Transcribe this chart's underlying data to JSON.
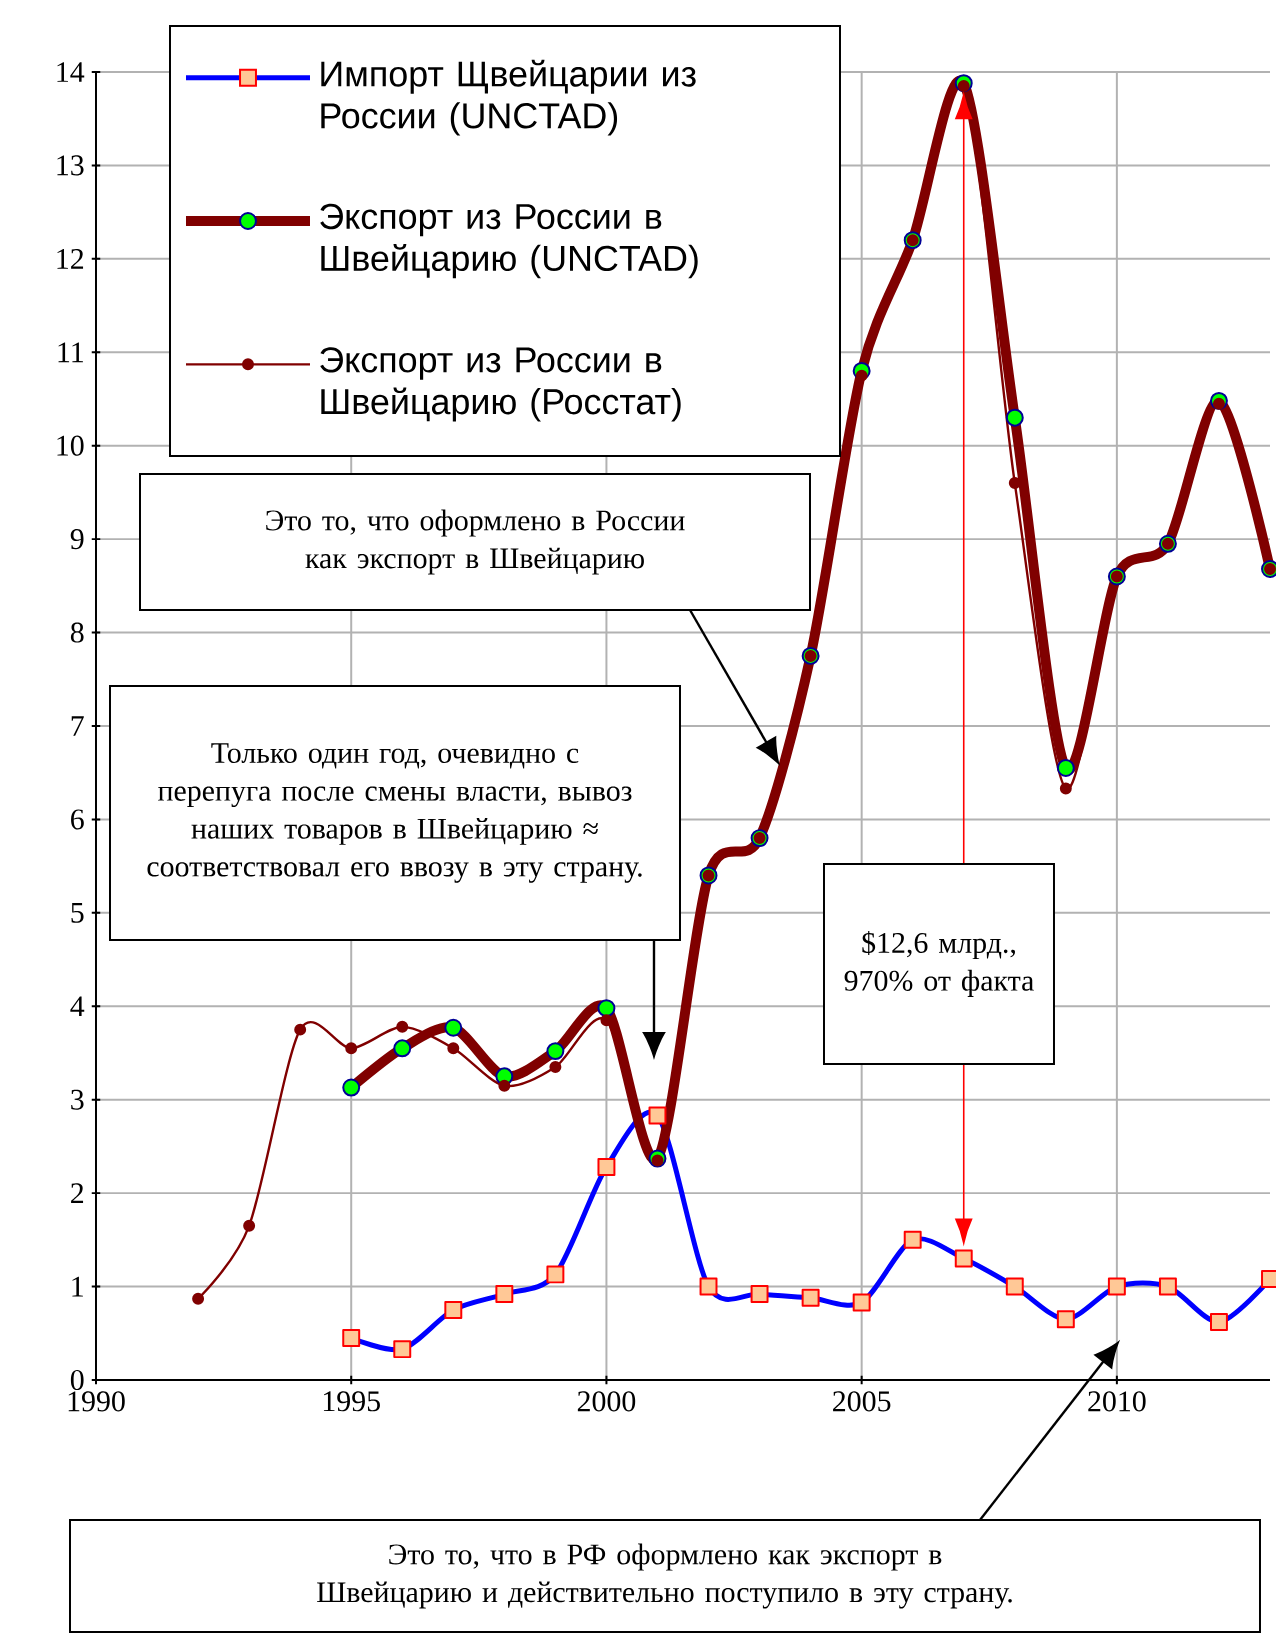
{
  "chart_data": {
    "type": "line",
    "xlim": [
      1990,
      2013
    ],
    "ylim": [
      0,
      14
    ],
    "xticks": [
      1990,
      1995,
      2000,
      2005,
      2010
    ],
    "yticks": [
      0,
      1,
      2,
      3,
      4,
      5,
      6,
      7,
      8,
      9,
      10,
      11,
      12,
      13,
      14
    ],
    "grid": true,
    "legend": "top left",
    "line_style": "solid",
    "series": [
      {
        "name": "Импорт Щвейцарии из России (UNCTAD)",
        "color": "#0000ff",
        "marker": "square",
        "x": [
          1995,
          1996,
          1997,
          1998,
          1999,
          2000,
          2001,
          2002,
          2003,
          2004,
          2005,
          2006,
          2007,
          2008,
          2009,
          2010,
          2011,
          2012,
          2013
        ],
        "values": [
          0.45,
          0.33,
          0.75,
          0.92,
          1.13,
          2.28,
          2.83,
          1.0,
          0.92,
          0.88,
          0.83,
          1.5,
          1.3,
          1.0,
          0.65,
          1.0,
          1.0,
          0.62,
          1.08
        ]
      },
      {
        "name": "Экспорт из России в Швейцарию (UNCTAD)",
        "color": "#800000",
        "marker": "circle",
        "x": [
          1995,
          1996,
          1997,
          1998,
          1999,
          2000,
          2001,
          2002,
          2003,
          2004,
          2005,
          2006,
          2007,
          2008,
          2009,
          2010,
          2011,
          2012,
          2013
        ],
        "values": [
          3.13,
          3.55,
          3.77,
          3.25,
          3.52,
          3.98,
          2.37,
          5.4,
          5.8,
          7.75,
          10.8,
          12.2,
          13.88,
          10.3,
          6.55,
          8.6,
          8.95,
          10.48,
          8.68
        ]
      },
      {
        "name": "Экспорт из России в Швейцарию (Росстат)",
        "color": "#800000",
        "marker": "circle",
        "x": [
          1992,
          1993,
          1994,
          1995,
          1996,
          1997,
          1998,
          1999,
          2000,
          2001,
          2002,
          2003,
          2004,
          2005,
          2006,
          2007,
          2008,
          2009,
          2010,
          2011,
          2012,
          2013
        ],
        "values": [
          0.87,
          1.65,
          3.75,
          3.55,
          3.78,
          3.55,
          3.15,
          3.35,
          3.85,
          2.35,
          5.4,
          5.8,
          7.75,
          10.75,
          12.2,
          13.85,
          9.6,
          6.33,
          8.6,
          8.95,
          10.45,
          8.68
        ]
      }
    ],
    "annotations": [
      "Это то, что оформлено в России как экспорт в Швейцарию",
      "Только один  год, очевидно с перепуга после смены власти, вывоз наших товаров в Швейцарию ≈ соответствовал его ввозу в эту страну.",
      "$12,6 млрд., 970% от факта",
      "Это то, что в РФ оформлено как экспорт в Швейцарию и действительно поступило в эту страну."
    ]
  }
}
